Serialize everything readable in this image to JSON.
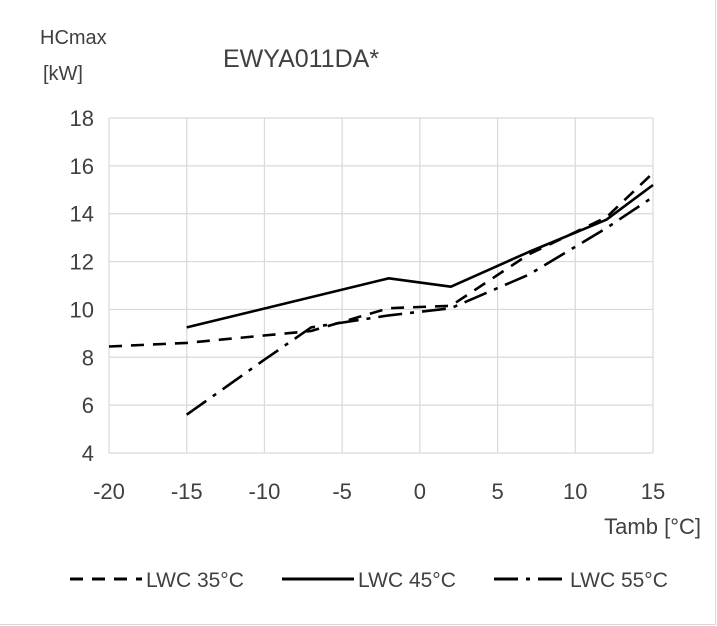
{
  "chart_data": {
    "type": "line",
    "title": "EWYA011DA*",
    "ylabel_line1": "HCmax",
    "ylabel_line2": "[kW]",
    "xlabel": "Tamb [°C]",
    "xlim": [
      -20,
      15
    ],
    "ylim": [
      4,
      18
    ],
    "xticks": [
      "-20",
      "-15",
      "-10",
      "-5",
      "0",
      "5",
      "10",
      "15"
    ],
    "yticks": [
      "4",
      "6",
      "8",
      "10",
      "12",
      "14",
      "16",
      "18"
    ],
    "grid": true,
    "legend_position": "bottom",
    "series": [
      {
        "name": "LWC 35°C",
        "dash": "dash",
        "points": [
          [
            -20,
            8.45
          ],
          [
            -15,
            8.6
          ],
          [
            -7,
            9.1
          ],
          [
            -2,
            10.05
          ],
          [
            2,
            10.15
          ],
          [
            7,
            12.3
          ],
          [
            12,
            13.85
          ],
          [
            15,
            15.7
          ]
        ]
      },
      {
        "name": "LWC 45°C",
        "dash": "solid",
        "points": [
          [
            -15,
            9.25
          ],
          [
            -2,
            11.3
          ],
          [
            2,
            10.95
          ],
          [
            7,
            12.4
          ],
          [
            12,
            13.75
          ],
          [
            15,
            15.2
          ]
        ]
      },
      {
        "name": "LWC 55°C",
        "dash": "dashdot",
        "points": [
          [
            -15,
            5.6
          ],
          [
            -10,
            7.9
          ],
          [
            -7,
            9.25
          ],
          [
            -2,
            9.75
          ],
          [
            2,
            10.05
          ],
          [
            7,
            11.45
          ],
          [
            12,
            13.4
          ],
          [
            15,
            14.7
          ]
        ]
      }
    ]
  }
}
